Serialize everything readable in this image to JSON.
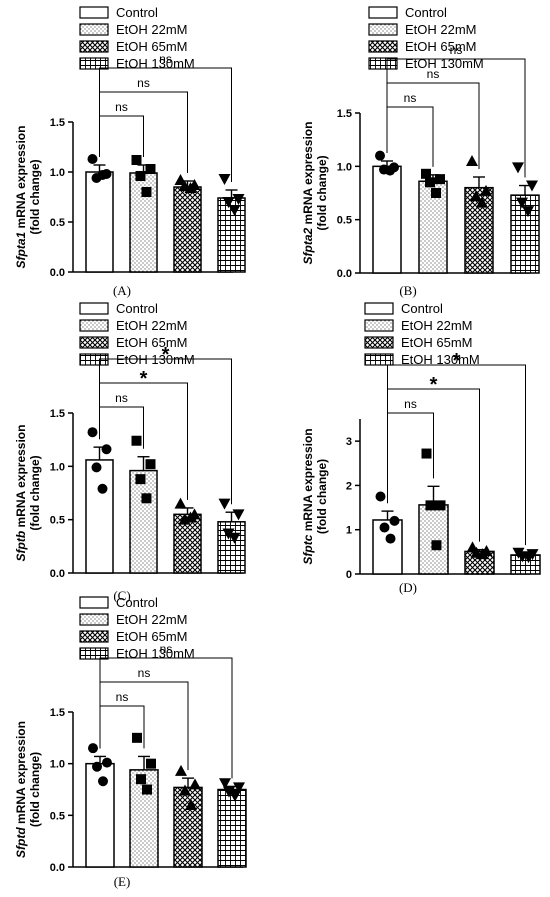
{
  "legend": [
    "Control",
    "EtOH 22mM",
    "EtOH 65mM",
    "EtOH 130mM"
  ],
  "chart_data": [
    {
      "type": "bar",
      "panel_label": "(A)",
      "gene": "Sfpta1",
      "ylabel_suffix": " mRNA expression",
      "ylabel_line2": "(fold change)",
      "categories": [
        "Control",
        "EtOH 22mM",
        "EtOH 65mM",
        "EtOH 130mM"
      ],
      "values": [
        1.0,
        0.99,
        0.85,
        0.74
      ],
      "errors": [
        0.07,
        0.08,
        0.06,
        0.08
      ],
      "points": [
        [
          1.13,
          0.98,
          0.94,
          0.97
        ],
        [
          1.12,
          1.03,
          0.96,
          0.8
        ],
        [
          0.92,
          0.87,
          0.86,
          0.84
        ],
        [
          0.93,
          0.73,
          0.7,
          0.62
        ]
      ],
      "ylim": [
        0,
        1.5
      ],
      "yticks": [
        "0.0",
        "0.5",
        "1.0",
        "1.5"
      ],
      "comparisons": [
        {
          "to": 1,
          "label": "ns"
        },
        {
          "to": 2,
          "label": "ns"
        },
        {
          "to": 3,
          "label": "ns"
        }
      ],
      "grid": false
    },
    {
      "type": "bar",
      "panel_label": "(B)",
      "gene": "Sfpta2",
      "ylabel_suffix": " mRNA expression",
      "ylabel_line2": "(fold change)",
      "categories": [
        "Control",
        "EtOH 22mM",
        "EtOH 65mM",
        "EtOH 130mM"
      ],
      "values": [
        1.0,
        0.86,
        0.8,
        0.73
      ],
      "errors": [
        0.05,
        0.06,
        0.1,
        0.09
      ],
      "points": [
        [
          1.1,
          0.99,
          0.97,
          0.96
        ],
        [
          0.93,
          0.88,
          0.85,
          0.75
        ],
        [
          1.05,
          0.77,
          0.72,
          0.66
        ],
        [
          0.99,
          0.82,
          0.66,
          0.58
        ]
      ],
      "ylim": [
        0,
        1.5
      ],
      "yticks": [
        "0.0",
        "0.5",
        "1.0",
        "1.5"
      ],
      "comparisons": [
        {
          "to": 1,
          "label": "ns"
        },
        {
          "to": 2,
          "label": "ns"
        },
        {
          "to": 3,
          "label": "ns"
        }
      ],
      "grid": false
    },
    {
      "type": "bar",
      "panel_label": "(C)",
      "gene": "Sfptb",
      "ylabel_suffix": " mRNA expression",
      "ylabel_line2": "(fold change)",
      "categories": [
        "Control",
        "EtOH 22mM",
        "EtOH 65mM",
        "EtOH 130mM"
      ],
      "values": [
        1.06,
        0.96,
        0.55,
        0.48
      ],
      "errors": [
        0.12,
        0.13,
        0.06,
        0.09
      ],
      "points": [
        [
          1.32,
          1.16,
          0.99,
          0.79
        ],
        [
          1.24,
          1.02,
          0.88,
          0.7
        ],
        [
          0.65,
          0.55,
          0.5,
          0.52
        ],
        [
          0.65,
          0.55,
          0.37,
          0.33
        ]
      ],
      "ylim": [
        0,
        1.5
      ],
      "yticks": [
        "0.0",
        "0.5",
        "1.0",
        "1.5"
      ],
      "comparisons": [
        {
          "to": 1,
          "label": "ns"
        },
        {
          "to": 2,
          "label": "*"
        },
        {
          "to": 3,
          "label": "*"
        }
      ],
      "grid": false
    },
    {
      "type": "bar",
      "panel_label": "(D)",
      "gene": "Sfptc",
      "ylabel_suffix": " mRNA expression",
      "ylabel_line2": "(fold change)",
      "categories": [
        "Control",
        "EtOH 22mM",
        "EtOH 65mM",
        "EtOH 130mM"
      ],
      "values": [
        1.22,
        1.56,
        0.51,
        0.43
      ],
      "errors": [
        0.2,
        0.42,
        0.04,
        0.04
      ],
      "points": [
        [
          1.75,
          1.2,
          1.05,
          0.8
        ],
        [
          2.72,
          1.55,
          1.55,
          0.65
        ],
        [
          0.6,
          0.52,
          0.48,
          0.45
        ],
        [
          0.48,
          0.45,
          0.4,
          0.38
        ]
      ],
      "ylim": [
        0,
        3.5
      ],
      "yticks": [
        "0",
        "1",
        "2",
        "3"
      ],
      "comparisons": [
        {
          "to": 1,
          "label": "ns"
        },
        {
          "to": 2,
          "label": "*"
        },
        {
          "to": 3,
          "label": "*"
        }
      ],
      "grid": false
    },
    {
      "type": "bar",
      "panel_label": "(E)",
      "gene": "Sfptd",
      "ylabel_suffix": " mRNA expression",
      "ylabel_line2": "(fold change)",
      "categories": [
        "Control",
        "EtOH 22mM",
        "EtOH 65mM",
        "EtOH 130mM"
      ],
      "values": [
        1.0,
        0.94,
        0.77,
        0.75
      ],
      "errors": [
        0.07,
        0.13,
        0.09,
        0.03
      ],
      "points": [
        [
          1.15,
          1.01,
          0.97,
          0.83
        ],
        [
          1.25,
          1.0,
          0.85,
          0.75
        ],
        [
          0.93,
          0.8,
          0.74,
          0.6
        ],
        [
          0.81,
          0.77,
          0.73,
          0.69
        ]
      ],
      "ylim": [
        0,
        1.5
      ],
      "yticks": [
        "0.0",
        "0.5",
        "1.0",
        "1.5"
      ],
      "comparisons": [
        {
          "to": 1,
          "label": "ns"
        },
        {
          "to": 2,
          "label": "ns"
        },
        {
          "to": 3,
          "label": "ns"
        }
      ],
      "grid": false
    }
  ]
}
